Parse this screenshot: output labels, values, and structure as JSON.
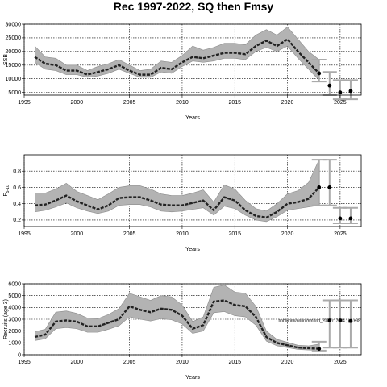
{
  "page": {
    "title": "Rec 1997-2022, SQ then Fmsy"
  },
  "chart_data": [
    {
      "type": "line",
      "title": "",
      "xlabel": "Years",
      "ylabel": "SSB",
      "xlim": [
        1995,
        2027
      ],
      "ylim": [
        4000,
        30000
      ],
      "xticks": [
        1995,
        2000,
        2005,
        2010,
        2015,
        2020,
        2025
      ],
      "yticks": [
        5000,
        10000,
        15000,
        20000,
        25000,
        30000
      ],
      "x": [
        1996,
        1997,
        1998,
        1999,
        2000,
        2001,
        2002,
        2003,
        2004,
        2005,
        2006,
        2007,
        2008,
        2009,
        2010,
        2011,
        2012,
        2013,
        2014,
        2015,
        2016,
        2017,
        2018,
        2019,
        2020,
        2021,
        2022,
        2023
      ],
      "median": [
        18000,
        15500,
        15000,
        13000,
        13000,
        11500,
        12500,
        13500,
        15000,
        13000,
        11500,
        11500,
        14000,
        13500,
        16000,
        18000,
        17500,
        18500,
        19500,
        19500,
        19000,
        22000,
        24000,
        22000,
        24500,
        20000,
        16000,
        12000
      ],
      "lower": [
        16000,
        13500,
        13000,
        11500,
        11500,
        10500,
        11000,
        12000,
        13500,
        12000,
        10500,
        10500,
        12500,
        12000,
        14500,
        16500,
        16000,
        16500,
        17500,
        17500,
        17000,
        20000,
        21500,
        20000,
        22000,
        17500,
        13500,
        9500
      ],
      "upper": [
        22000,
        18000,
        17500,
        15000,
        15000,
        13000,
        14500,
        15500,
        17000,
        15000,
        13000,
        13500,
        16500,
        16000,
        18500,
        22000,
        20500,
        21500,
        23000,
        23000,
        22500,
        26000,
        28000,
        26000,
        29000,
        24500,
        20000,
        17000
      ],
      "projection": [
        {
          "x": 2023,
          "y": 12000,
          "lo": 9000,
          "hi": 17000
        },
        {
          "x": 2024,
          "y": 7500,
          "lo": 4000,
          "hi": 12500
        },
        {
          "x": 2025,
          "y": 5000,
          "lo": 2500,
          "hi": 9500
        },
        {
          "x": 2026,
          "y": 5500,
          "lo": 2500,
          "hi": 9500
        }
      ],
      "grid": true
    },
    {
      "type": "line",
      "title": "",
      "xlabel": "Years",
      "ylabel": "F",
      "ylabel_sub": "5-10",
      "xlim": [
        1995,
        2027
      ],
      "ylim": [
        0.12,
        1.0
      ],
      "xticks": [
        1995,
        2000,
        2005,
        2010,
        2015,
        2020,
        2025
      ],
      "yticks": [
        0.2,
        0.4,
        0.6,
        0.8
      ],
      "yticklabels": [
        "0.2",
        "0.4",
        "0.6",
        "0.8"
      ],
      "x": [
        1996,
        1997,
        1998,
        1999,
        2000,
        2001,
        2002,
        2003,
        2004,
        2005,
        2006,
        2007,
        2008,
        2009,
        2010,
        2011,
        2012,
        2013,
        2014,
        2015,
        2016,
        2017,
        2018,
        2019,
        2020,
        2021,
        2022,
        2023
      ],
      "median": [
        0.38,
        0.39,
        0.44,
        0.5,
        0.43,
        0.38,
        0.33,
        0.38,
        0.47,
        0.48,
        0.48,
        0.44,
        0.39,
        0.38,
        0.38,
        0.41,
        0.44,
        0.32,
        0.48,
        0.44,
        0.32,
        0.25,
        0.23,
        0.3,
        0.4,
        0.42,
        0.46,
        0.6
      ],
      "lower": [
        0.3,
        0.32,
        0.36,
        0.41,
        0.35,
        0.31,
        0.28,
        0.31,
        0.38,
        0.39,
        0.39,
        0.36,
        0.31,
        0.3,
        0.31,
        0.33,
        0.35,
        0.26,
        0.37,
        0.34,
        0.26,
        0.2,
        0.18,
        0.24,
        0.32,
        0.34,
        0.36,
        0.38
      ],
      "upper": [
        0.53,
        0.53,
        0.58,
        0.65,
        0.55,
        0.5,
        0.45,
        0.52,
        0.6,
        0.62,
        0.62,
        0.58,
        0.52,
        0.5,
        0.5,
        0.53,
        0.57,
        0.42,
        0.63,
        0.58,
        0.44,
        0.34,
        0.31,
        0.4,
        0.52,
        0.56,
        0.66,
        0.94
      ],
      "projection": [
        {
          "x": 2023,
          "y": 0.6,
          "lo": 0.38,
          "hi": 0.94
        },
        {
          "x": 2024,
          "y": 0.6,
          "lo": 0.38,
          "hi": 0.94
        },
        {
          "x": 2025,
          "y": 0.22,
          "lo": 0.16,
          "hi": 0.35
        },
        {
          "x": 2026,
          "y": 0.22,
          "lo": 0.16,
          "hi": 0.35
        }
      ],
      "grid": true
    },
    {
      "type": "line",
      "title": "",
      "xlabel": "Years",
      "ylabel": "Recruits (age 3)",
      "xlim": [
        1995,
        2027
      ],
      "ylim": [
        0,
        6000
      ],
      "xticks": [
        1995,
        2000,
        2005,
        2010,
        2015,
        2020,
        2025
      ],
      "yticks": [
        0,
        1000,
        2000,
        3000,
        4000,
        5000,
        6000
      ],
      "x": [
        1996,
        1997,
        1998,
        1999,
        2000,
        2001,
        2002,
        2003,
        2004,
        2005,
        2006,
        2007,
        2008,
        2009,
        2010,
        2011,
        2012,
        2013,
        2014,
        2015,
        2016,
        2017,
        2018,
        2019,
        2020,
        2021,
        2022,
        2023
      ],
      "median": [
        1500,
        1700,
        2800,
        2900,
        2800,
        2400,
        2400,
        2700,
        3000,
        4100,
        3800,
        3600,
        3900,
        3800,
        3300,
        2200,
        2500,
        4500,
        4600,
        4200,
        4100,
        3200,
        1500,
        1000,
        800,
        600,
        550,
        500
      ],
      "lower": [
        1200,
        1350,
        2200,
        2300,
        2200,
        1900,
        1900,
        2150,
        2450,
        3200,
        3000,
        2850,
        3050,
        2950,
        2600,
        1800,
        2000,
        3550,
        3650,
        3300,
        3200,
        2500,
        1150,
        750,
        600,
        450,
        400,
        350
      ],
      "upper": [
        1950,
        2150,
        3600,
        3700,
        3500,
        3100,
        3050,
        3400,
        3900,
        5200,
        4900,
        4600,
        5000,
        4900,
        4200,
        2800,
        3200,
        5700,
        5900,
        5300,
        5200,
        4100,
        2000,
        1300,
        1050,
        800,
        750,
        900
      ],
      "projection": [
        {
          "x": 2023,
          "y": 500,
          "lo": 350,
          "hi": 1100
        },
        {
          "x": 2024,
          "y": 2900,
          "lo": 600,
          "hi": 4600
        },
        {
          "x": 2025,
          "y": 2900,
          "lo": 600,
          "hi": 4600
        },
        {
          "x": 2026,
          "y": 2850,
          "lo": 600,
          "hi": 4600
        }
      ],
      "annotation": "bbb/nnnn/nnnn/mmnnd_2024 r17934 ; git e38",
      "grid": true
    }
  ]
}
